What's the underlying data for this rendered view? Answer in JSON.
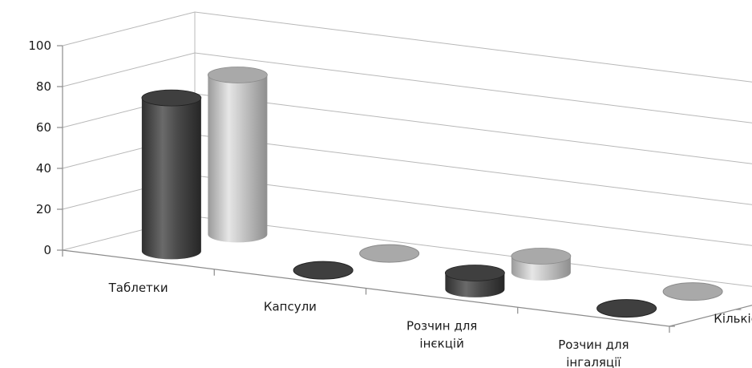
{
  "chart_data": {
    "type": "bar",
    "subtype": "3d-cylinder",
    "categories": [
      "Таблетки",
      "Капсули",
      "Розчин для інєкцій",
      "Розчин для інгаляції"
    ],
    "category_lines": [
      [
        "Таблетки"
      ],
      [
        "Капсули"
      ],
      [
        "Розчин для",
        "інєкцій"
      ],
      [
        "Розчин для",
        "інгаляції"
      ]
    ],
    "series": [
      {
        "name": "Кількість",
        "values": [
          75,
          0,
          8,
          0
        ]
      },
      {
        "name": "%",
        "values": [
          78,
          0,
          8,
          0
        ]
      }
    ],
    "yticks": [
      0,
      20,
      40,
      60,
      80,
      100
    ],
    "ylim": [
      0,
      100
    ],
    "grid": true,
    "colors": {
      "front": "#4a4a4a",
      "back": "#bdbdbd",
      "grid": "#b8b8b8",
      "axis": "#8c8c8c"
    }
  }
}
